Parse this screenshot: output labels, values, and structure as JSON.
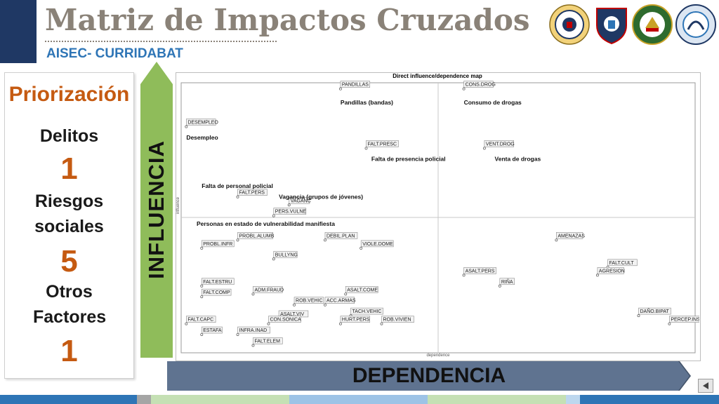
{
  "header": {
    "title": "Matriz de Impactos Cruzados",
    "subtitle": "AISEC- CURRIDABAT",
    "seals": [
      {
        "label": "UNITED STATES OF AMERICA · EMBASSY",
        "icon": "us-embassy-seal-icon"
      },
      {
        "label": "FUERZA PÚBLICA",
        "icon": "fuerza-publica-badge-icon"
      },
      {
        "label": "DIOS Y PATRIA",
        "icon": "police-emblem-icon"
      },
      {
        "label": "AISEC",
        "icon": "aisec-logo-icon"
      }
    ]
  },
  "panel": {
    "title": "Priorización",
    "items": [
      {
        "label": "Delitos",
        "count": "1"
      },
      {
        "label": "Riesgos sociales",
        "count": "5"
      },
      {
        "label": "Otros Factores",
        "count": "1"
      }
    ]
  },
  "axes": {
    "influence_label": "INFLUENCIA",
    "dependence_label": "DEPENDENCIA"
  },
  "chart_data": {
    "type": "scatter",
    "title": "Direct influence/dependence map",
    "xlabel": "dependence",
    "ylabel": "influence",
    "xlim": [
      0,
      100
    ],
    "ylim": [
      0,
      100
    ],
    "grid": "quadrant",
    "points": [
      {
        "label": "PANDILLAS",
        "x": 31,
        "y": 98
      },
      {
        "label": "CONS.DROG",
        "x": 55,
        "y": 98
      },
      {
        "label": "DESEMPLEO",
        "x": 1,
        "y": 84
      },
      {
        "label": "FALT.PRESC",
        "x": 36,
        "y": 76
      },
      {
        "label": "VENT.DROG",
        "x": 59,
        "y": 76
      },
      {
        "label": "FALT.PERS",
        "x": 11,
        "y": 58
      },
      {
        "label": "VAGANC",
        "x": 21,
        "y": 55
      },
      {
        "label": "PERS.VULNE",
        "x": 18,
        "y": 51
      },
      {
        "label": "PROBL.ALUMB",
        "x": 11,
        "y": 42
      },
      {
        "label": "DEBIL.PLAN",
        "x": 28,
        "y": 42
      },
      {
        "label": "PROBL.INFR",
        "x": 4,
        "y": 39
      },
      {
        "label": "VIOLE.DOME",
        "x": 35,
        "y": 39
      },
      {
        "label": "AMENAZAS",
        "x": 73,
        "y": 42
      },
      {
        "label": "BULLYNG",
        "x": 18,
        "y": 35
      },
      {
        "label": "FALT.CULT",
        "x": 83,
        "y": 32
      },
      {
        "label": "ASALT.PERS",
        "x": 55,
        "y": 29
      },
      {
        "label": "AGRESION",
        "x": 81,
        "y": 29
      },
      {
        "label": "FALT.ESTRU",
        "x": 4,
        "y": 25
      },
      {
        "label": "RIÑA",
        "x": 62,
        "y": 25
      },
      {
        "label": "ADM.FRAUD",
        "x": 14,
        "y": 22
      },
      {
        "label": "ASALT.COME",
        "x": 32,
        "y": 22
      },
      {
        "label": "FALT.COMP",
        "x": 4,
        "y": 21
      },
      {
        "label": "ROB.VEHIC",
        "x": 22,
        "y": 18
      },
      {
        "label": "ACC.ARMAS",
        "x": 28,
        "y": 18
      },
      {
        "label": "TACH.VEHIC",
        "x": 33,
        "y": 14
      },
      {
        "label": "ASALT.VIV",
        "x": 19,
        "y": 13
      },
      {
        "label": "DAÑO.BIPAT",
        "x": 89,
        "y": 14
      },
      {
        "label": "FALT.CAPC",
        "x": 1,
        "y": 11
      },
      {
        "label": "CON.SONICA",
        "x": 17,
        "y": 11
      },
      {
        "label": "HURT.PERS",
        "x": 31,
        "y": 11
      },
      {
        "label": "ROB.VIVIEN",
        "x": 39,
        "y": 11
      },
      {
        "label": "PERCEP.INS",
        "x": 95,
        "y": 11
      },
      {
        "label": "ESTAFA",
        "x": 4,
        "y": 7
      },
      {
        "label": "INFRA.INAD",
        "x": 11,
        "y": 7
      },
      {
        "label": "FALT.ELEM",
        "x": 14,
        "y": 3
      }
    ],
    "annotations": [
      {
        "text": "Pandillas (bandas)",
        "x": 31,
        "y": 92
      },
      {
        "text": "Consumo de drogas",
        "x": 55,
        "y": 92
      },
      {
        "text": "Desempleo",
        "x": 1,
        "y": 79
      },
      {
        "text": "Falta de presencia policial",
        "x": 37,
        "y": 71
      },
      {
        "text": "Venta de drogas",
        "x": 61,
        "y": 71
      },
      {
        "text": "Falta de personal policial",
        "x": 4,
        "y": 61
      },
      {
        "text": "Vagancia (grupos de jóvenes)",
        "x": 19,
        "y": 57
      },
      {
        "text": "Personas en estado de vulnerabilidad manifiesta",
        "x": 3,
        "y": 47
      }
    ]
  },
  "footer": {
    "colors": [
      "#2e75b6",
      "#a5a5a5",
      "#c5e0b4",
      "#9dc3e6",
      "#c5e0b4",
      "#bdd7ee",
      "#2e75b6"
    ],
    "prev_icon": "back-arrow-icon"
  }
}
